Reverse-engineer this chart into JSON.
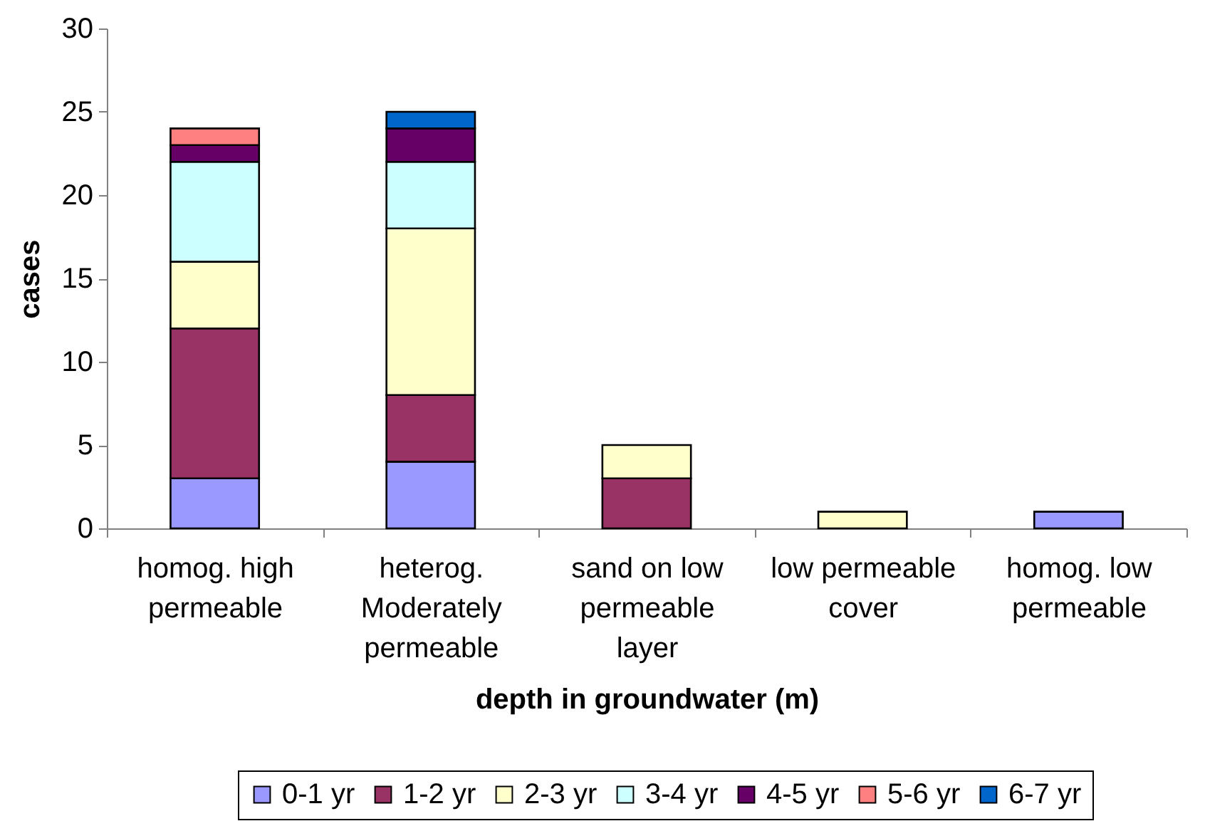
{
  "chart_data": {
    "type": "bar",
    "stacked": true,
    "ylabel": "cases",
    "xlabel": "depth in groundwater (m)",
    "categories": [
      "homog. high permeable",
      "heterog. Moderately permeable",
      "sand on low permeable layer",
      "low permeable cover",
      "homog. low permeable"
    ],
    "series": [
      {
        "name": "0-1 yr",
        "color": "#9999ff",
        "values": [
          3,
          4,
          null,
          null,
          1
        ]
      },
      {
        "name": "1-2 yr",
        "color": "#993366",
        "values": [
          9,
          4,
          3,
          null,
          null
        ]
      },
      {
        "name": "2-3 yr",
        "color": "#ffffcc",
        "values": [
          4,
          10,
          2,
          1,
          null
        ]
      },
      {
        "name": "3-4 yr",
        "color": "#ccffff",
        "values": [
          6,
          4,
          null,
          null,
          null
        ]
      },
      {
        "name": "4-5 yr",
        "color": "#660066",
        "values": [
          1,
          2,
          null,
          null,
          null
        ]
      },
      {
        "name": "5-6 yr",
        "color": "#ff8080",
        "values": [
          1,
          null,
          null,
          null,
          null
        ]
      },
      {
        "name": "6-7 yr",
        "color": "#0066cc",
        "values": [
          null,
          1,
          null,
          null,
          null
        ]
      }
    ],
    "ylim": [
      0,
      30
    ],
    "yticks": [
      0,
      5,
      10,
      15,
      20,
      25,
      30
    ],
    "legend": "bottom"
  }
}
